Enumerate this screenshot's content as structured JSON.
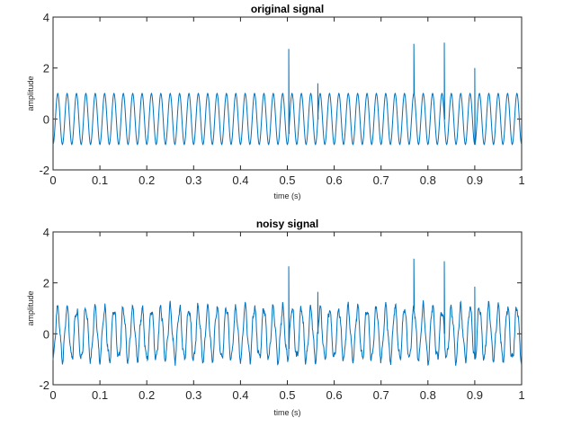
{
  "chart_data": [
    {
      "type": "line",
      "title": "original signal",
      "xlabel": "time (s)",
      "ylabel": "amplitude",
      "xlim": [
        0,
        1
      ],
      "ylim": [
        -2,
        4
      ],
      "xticks": [
        "0",
        "0.1",
        "0.2",
        "0.3",
        "0.4",
        "0.5",
        "0.6",
        "0.7",
        "0.8",
        "0.9",
        "1"
      ],
      "yticks": [
        "-2",
        "0",
        "2",
        "4"
      ],
      "grid": false,
      "color": "#0072BD",
      "signal": {
        "frequency_hz": 50,
        "amplitude": 1,
        "offset": 0
      },
      "spikes": [
        {
          "t": 0.503,
          "y": 2.75
        },
        {
          "t": 0.565,
          "y": 1.4
        },
        {
          "t": 0.77,
          "y": 2.95
        },
        {
          "t": 0.835,
          "y": 3.0
        },
        {
          "t": 0.9,
          "y": 2.0
        }
      ],
      "noise": 0
    },
    {
      "type": "line",
      "title": "noisy signal",
      "xlabel": "time (s)",
      "ylabel": "amplitude",
      "xlim": [
        0,
        1
      ],
      "ylim": [
        -2,
        4
      ],
      "xticks": [
        "0",
        "0.1",
        "0.2",
        "0.3",
        "0.4",
        "0.5",
        "0.6",
        "0.7",
        "0.8",
        "0.9",
        "1"
      ],
      "yticks": [
        "-2",
        "0",
        "2",
        "4"
      ],
      "grid": false,
      "color": "#0072BD",
      "signal": {
        "frequency_hz": 50,
        "amplitude": 1,
        "offset": 0
      },
      "spikes": [
        {
          "t": 0.503,
          "y": 2.65
        },
        {
          "t": 0.565,
          "y": 1.65
        },
        {
          "t": 0.77,
          "y": 2.95
        },
        {
          "t": 0.835,
          "y": 2.85
        },
        {
          "t": 0.9,
          "y": 1.85
        }
      ],
      "noise": 0.2
    }
  ]
}
